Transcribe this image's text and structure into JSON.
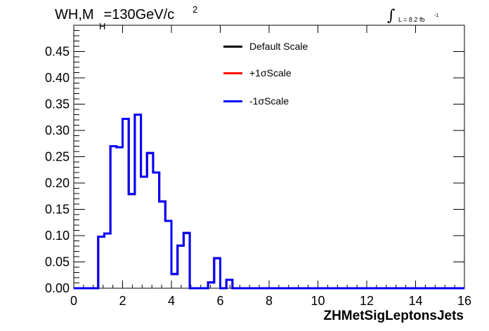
{
  "header": {
    "title_main": "WH,M",
    "title_sub": "H",
    "title_rest": "=130GeV/c",
    "title_sup": "2",
    "lumi_symbol": "∫",
    "lumi_text": "L = 8.2 fb",
    "lumi_sup": "-1"
  },
  "legend": {
    "entries": [
      {
        "label": "Default Scale",
        "color": "#000000"
      },
      {
        "label": "+1σScale",
        "color": "#ff0000"
      },
      {
        "label": "-1σScale",
        "color": "#0000ff"
      }
    ]
  },
  "chart_data": {
    "type": "histogram",
    "title": "WH,M_H=130GeV/c^2",
    "xlabel": "ZHMetSigLeptonsJets",
    "ylabel": "",
    "xlim": [
      0,
      16
    ],
    "ylim": [
      0,
      0.5
    ],
    "xticks": [
      "0",
      "2",
      "4",
      "6",
      "8",
      "10",
      "12",
      "14",
      "16"
    ],
    "yticks": [
      "0.00",
      "0.05",
      "0.10",
      "0.15",
      "0.20",
      "0.25",
      "0.30",
      "0.35",
      "0.40",
      "0.45"
    ],
    "bin_width": 0.25,
    "bin_edges_start": 0,
    "series": [
      {
        "name": "Default Scale",
        "color": "#000000",
        "values": [
          0,
          0,
          0,
          0,
          0.098,
          0.104,
          0.27,
          0.268,
          0.322,
          0.179,
          0.33,
          0.212,
          0.257,
          0.22,
          0.165,
          0.128,
          0.027,
          0.081,
          0.105,
          0,
          0,
          0,
          0.011,
          0.057,
          0,
          0.016,
          0,
          0,
          0,
          0,
          0,
          0,
          0,
          0,
          0,
          0,
          0,
          0,
          0,
          0,
          0,
          0,
          0,
          0,
          0,
          0,
          0,
          0,
          0,
          0,
          0,
          0,
          0,
          0,
          0,
          0,
          0,
          0,
          0,
          0,
          0,
          0,
          0,
          0
        ]
      },
      {
        "name": "+1σScale",
        "color": "#ff0000",
        "values": [
          0,
          0,
          0,
          0,
          0.098,
          0.104,
          0.27,
          0.268,
          0.322,
          0.179,
          0.33,
          0.212,
          0.257,
          0.22,
          0.165,
          0.128,
          0.027,
          0.081,
          0.105,
          0,
          0,
          0,
          0.011,
          0.057,
          0,
          0.016,
          0,
          0,
          0,
          0,
          0,
          0,
          0,
          0,
          0,
          0,
          0,
          0,
          0,
          0,
          0,
          0,
          0,
          0,
          0,
          0,
          0,
          0,
          0,
          0,
          0,
          0,
          0,
          0,
          0,
          0,
          0,
          0,
          0,
          0,
          0,
          0,
          0,
          0
        ]
      },
      {
        "name": "-1σScale",
        "color": "#0000ff",
        "values": [
          0,
          0,
          0,
          0,
          0.098,
          0.104,
          0.27,
          0.268,
          0.322,
          0.179,
          0.33,
          0.212,
          0.257,
          0.22,
          0.165,
          0.128,
          0.027,
          0.081,
          0.105,
          0,
          0,
          0,
          0.011,
          0.057,
          0,
          0.016,
          0,
          0,
          0,
          0,
          0,
          0,
          0,
          0,
          0,
          0,
          0,
          0,
          0,
          0,
          0,
          0,
          0,
          0,
          0,
          0,
          0,
          0,
          0,
          0,
          0,
          0,
          0,
          0,
          0,
          0,
          0,
          0,
          0,
          0,
          0,
          0,
          0,
          0
        ]
      }
    ]
  }
}
